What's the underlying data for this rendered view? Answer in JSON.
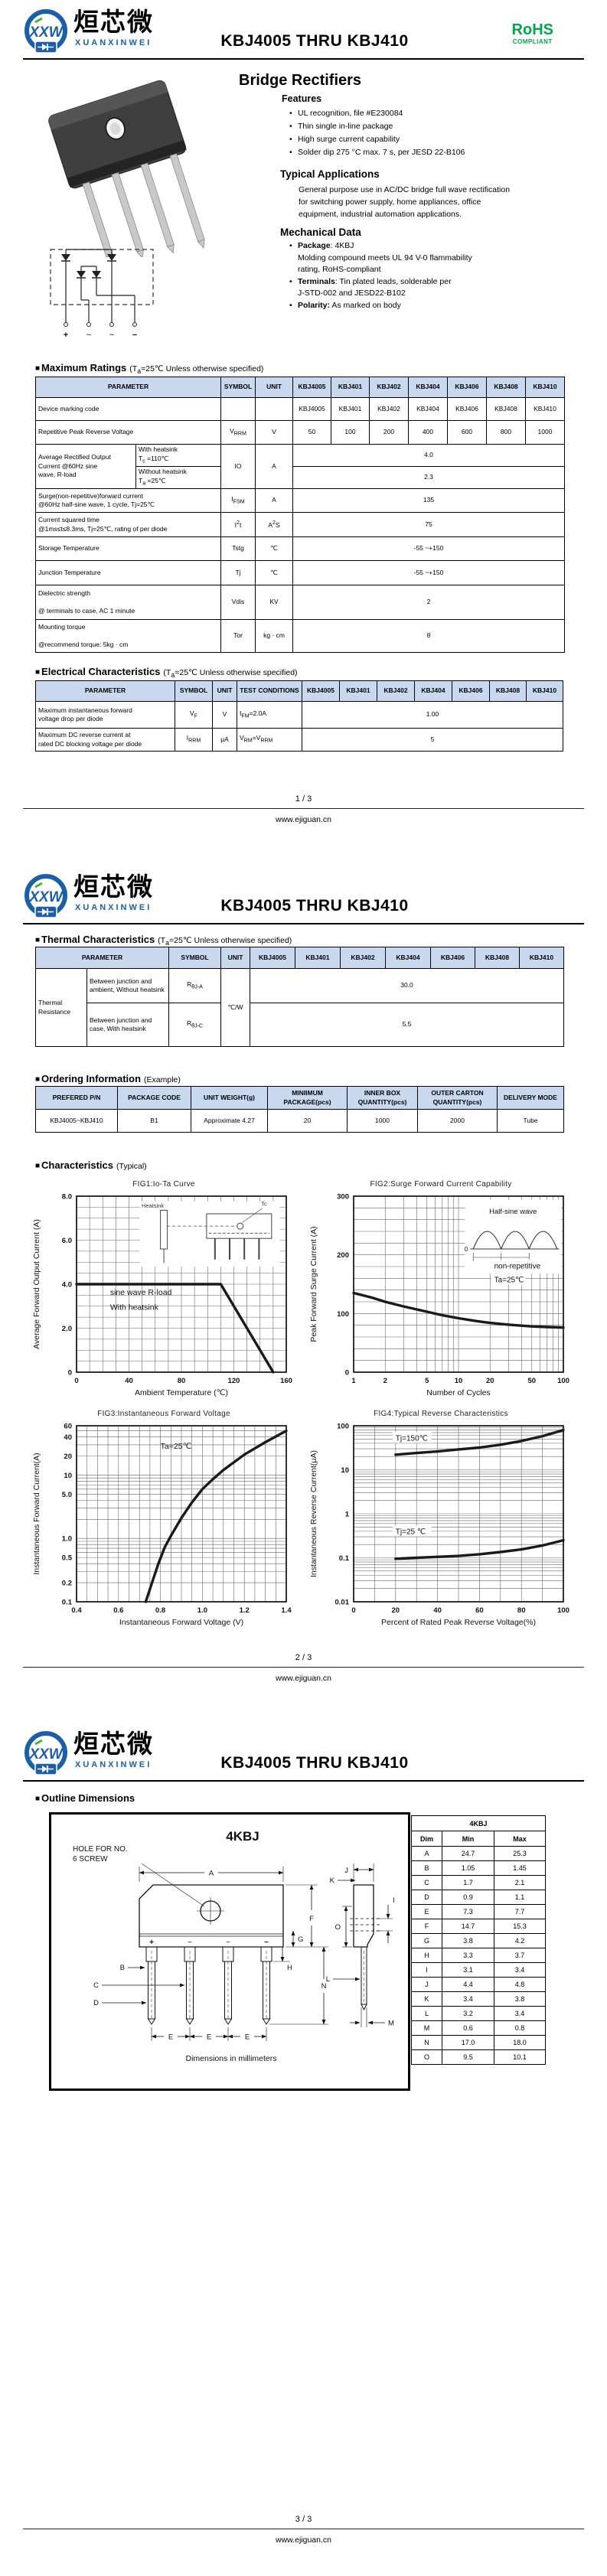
{
  "ui": {
    "bullet_square": "■",
    "bullet_dot": "•"
  },
  "brand": {
    "monogram": "XXW",
    "name_cn": "烜芯微",
    "name_en": "XUANXINWEI",
    "blue": "#1b5ea9",
    "green": "#46b035"
  },
  "header": {
    "title": "KBJ4005 THRU KBJ410",
    "rohs": "RoHS",
    "rohs_sub": "COMPLIANT"
  },
  "footer": {
    "site": "www.ejiguan.cn",
    "pages": [
      "1 / 3",
      "2 / 3",
      "3 / 3"
    ]
  },
  "page1": {
    "product_title": "Bridge Rectifiers",
    "features": {
      "title": "Features",
      "items": [
        "UL recognition, file #E230084",
        "Thin single in-line package",
        "High surge current capability",
        "Solder dip 275 °C max. 7 s, per JESD 22-B106"
      ]
    },
    "applications": {
      "title": "Typical  Applications",
      "lines": [
        "General purpose use in AC/DC bridge full wave rectification",
        "for switching power supply, home appliances, office",
        "equipment, industrial automation applications."
      ]
    },
    "mechanical": {
      "title": "Mechanical Data",
      "items": [
        {
          "bullet": "•",
          "html": "<b>Package</b>: 4KBJ"
        },
        {
          "bullet": "",
          "html": "Molding compound meets UL 94 V-0 flammability"
        },
        {
          "bullet": "",
          "html": "rating, RoHS-compliant"
        },
        {
          "bullet": "•",
          "html": "<b>Terminals</b>: Tin plated leads, solderable per"
        },
        {
          "bullet": "",
          "html": "J-STD-002 and JESD22-B102"
        },
        {
          "bullet": "•",
          "html": "<b>Polarity:</b> As marked on body"
        }
      ]
    },
    "schematic_terminals": [
      "+",
      "~",
      "~",
      "−"
    ]
  },
  "max_ratings": {
    "title": "Maximum Ratings",
    "condition_html": "(T<sub>a</sub>=25℃ Unless otherwise specified)",
    "headers": [
      "PARAMETER",
      "SYMBOL",
      "UNIT",
      "KBJ4005",
      "KBJ401",
      "KBJ402",
      "KBJ404",
      "KBJ406",
      "KBJ408",
      "KBJ410"
    ],
    "marking_row": {
      "param": "Device marking code",
      "values": [
        "KBJ4005",
        "KBJ401",
        "KBJ402",
        "KBJ404",
        "KBJ406",
        "KBJ408",
        "KBJ410"
      ]
    },
    "vrrm_row": {
      "param": "Repetitive Peak Reverse Voltage",
      "symbol_html": "V<sub>RRM</sub>",
      "unit": "V",
      "values": [
        "50",
        "100",
        "200",
        "400",
        "600",
        "800",
        "1000"
      ]
    },
    "io_row": {
      "param_html": "Average Rectified Output<br>Current @60Hz sine<br>wave, R-load",
      "sub1_html": "With heatsink<br>T<sub>c</sub> =110℃",
      "sub2_html": "Without heatsink<br>T<sub>a</sub> =25℃",
      "symbol": "IO",
      "unit": "A",
      "value1": "4.0",
      "value2": "2.3"
    },
    "ifsm_row": {
      "param_html": "Surge(non-repetitive)forward current<br>@60Hz half-sine wave, 1 cycle, Tj=25℃",
      "symbol_html": "I<sub>FSM</sub>",
      "unit": "A",
      "value": "135"
    },
    "i2t_row": {
      "param_html": "Current squared time<br>@1ms≤t≤8.3ms, Tj=25℃, rating of per diode",
      "symbol_html": "I<sup>2</sup>t",
      "unit_html": "A<sup>2</sup>S",
      "value": "75"
    },
    "tstg_row": {
      "param": "Storage Temperature",
      "symbol": "Tstg",
      "unit": "℃",
      "value": "-55 ~+150"
    },
    "tj_row": {
      "param": "Junction Temperature",
      "symbol": "Tj",
      "unit": "℃",
      "value": "-55 ~+150"
    },
    "vdis_row": {
      "param_html": "Dielectric strength<br><br>@ terminals to case, AC 1 minute",
      "symbol": "Vdis",
      "unit": "KV",
      "value": "2"
    },
    "tor_row": {
      "param_html": "Mounting torque<br><br>@recommend torque:  5kg · cm",
      "symbol": "Tor",
      "unit": "kg · cm",
      "value": "8"
    }
  },
  "electrical": {
    "title": "Electrical Characteristics",
    "condition_html": "(T<sub>a</sub>=25℃ Unless otherwise specified)",
    "headers": [
      "PARAMETER",
      "SYMBOL",
      "UNIT",
      "TEST CONDITIONS",
      "KBJ4005",
      "KBJ401",
      "KBJ402",
      "KBJ404",
      "KBJ406",
      "KBJ408",
      "KBJ410"
    ],
    "vf_row": {
      "param_html": "Maximum instantaneous forward<br>voltage drop per diode",
      "symbol_html": "V<sub>F</sub>",
      "unit": "V",
      "test_html": "I<sub>FM</sub>=2.0A",
      "value": "1.00"
    },
    "ir_row": {
      "param_html": "Maximum DC reverse current at<br>rated DC blocking voltage per diode",
      "symbol_html": "I<sub>RRM</sub>",
      "unit": "μA",
      "test_html": "V<sub>RM</sub>=V<sub>RRM</sub>",
      "value": "5"
    }
  },
  "thermal": {
    "title": "Thermal Characteristics",
    "condition_html": "(T<sub>a</sub>=25℃ Unless otherwise specified)",
    "headers": [
      "PARAMETER",
      "SYMBOL",
      "UNIT",
      "KBJ4005",
      "KBJ401",
      "KBJ402",
      "KBJ404",
      "KBJ406",
      "KBJ408",
      "KBJ410"
    ],
    "group_label": "Thermal Resistance",
    "unit": "℃/W",
    "row1": {
      "cond": "Between junction and ambient, Without heatsink",
      "symbol_html": "R<sub>θJ-A</sub>",
      "value": "30.0"
    },
    "row2": {
      "cond": "Between junction and case, With heatsink",
      "symbol_html": "R<sub>θJ-C</sub>",
      "value": "5.5"
    }
  },
  "ordering": {
    "title": "Ordering Information",
    "suffix": "(Example)",
    "headers": [
      "PREFERED P/N",
      "PACKAGE CODE",
      "UNIT WEIGHT(g)",
      "MINIIMUM PACKAGE(pcs)",
      "INNER BOX QUANTITY(pcs)",
      "OUTER CARTON QUANTITY(pcs)",
      "DELIVERY MODE"
    ],
    "row": [
      "KBJ4005~KBJ410",
      "B1",
      "Approximate 4.27",
      "20",
      "1000",
      "2000",
      "Tube"
    ]
  },
  "characteristics": {
    "title": "Characteristics",
    "suffix": "(Typical)"
  },
  "chart_data": [
    {
      "id": "fig1",
      "type": "line",
      "title": "FIG1:Io-Ta Curve",
      "xlabel": "Ambient Temperature (℃)",
      "ylabel": "Average Forward Output Current (A)",
      "xscale": "linear",
      "xlim": [
        0,
        160
      ],
      "xminor": 10,
      "yscale": "linear",
      "ylim": [
        0,
        8
      ],
      "yminor": 0.5,
      "xticks": [
        [
          0,
          "0"
        ],
        [
          40,
          "40"
        ],
        [
          80,
          "80"
        ],
        [
          120,
          "120"
        ],
        [
          160,
          "160"
        ]
      ],
      "yticks": [
        [
          0,
          "0"
        ],
        [
          2,
          "2.0"
        ],
        [
          4,
          "4.0"
        ],
        [
          6,
          "6.0"
        ],
        [
          8,
          "8.0"
        ]
      ],
      "series": [
        {
          "name": "Io limit",
          "points": [
            [
              0,
              4
            ],
            [
              110,
              4
            ],
            [
              150,
              0
            ]
          ]
        }
      ],
      "annotations": [
        {
          "fx": 0.16,
          "fy": 0.56,
          "text": "sine wave R-load",
          "size": 10.5
        },
        {
          "fx": 0.16,
          "fy": 0.645,
          "text": "With heatsink",
          "size": 10.5
        }
      ],
      "inset": "heatsink",
      "inset_labels": [
        "Heatsink",
        "Tc"
      ]
    },
    {
      "id": "fig2",
      "type": "line",
      "title": "FIG2:Surge Forward Current Capability",
      "xlabel": "Number of Cycles",
      "ylabel": "Peak Forward Surge Current (A)",
      "xscale": "log",
      "xlim": [
        1,
        100
      ],
      "yscale": "linear",
      "ylim": [
        0,
        300
      ],
      "yminor": 20,
      "xticks": [
        [
          1,
          "1"
        ],
        [
          2,
          "2"
        ],
        [
          5,
          "5"
        ],
        [
          10,
          "10"
        ],
        [
          20,
          "20"
        ],
        [
          50,
          "50"
        ],
        [
          100,
          "100"
        ]
      ],
      "yticks": [
        [
          0,
          "0"
        ],
        [
          100,
          "100"
        ],
        [
          200,
          "200"
        ],
        [
          300,
          "300"
        ]
      ],
      "series": [
        {
          "name": "IFSM",
          "points": [
            [
              1,
              135
            ],
            [
              1.5,
              127
            ],
            [
              2,
              120
            ],
            [
              3,
              112
            ],
            [
              5,
              103
            ],
            [
              7,
              97
            ],
            [
              10,
              92
            ],
            [
              15,
              87
            ],
            [
              20,
              84
            ],
            [
              30,
              81
            ],
            [
              50,
              78
            ],
            [
              70,
              77
            ],
            [
              100,
              76
            ]
          ]
        }
      ],
      "annotations": [
        {
          "fx": 0.67,
          "fy": 0.41,
          "text": "non-repetitive",
          "size": 10,
          "bg": true
        },
        {
          "fx": 0.67,
          "fy": 0.49,
          "text": "Ta=25℃",
          "size": 10,
          "bg": true
        }
      ],
      "inset": "halfsine",
      "inset_labels": [
        "Half-sine wave"
      ]
    },
    {
      "id": "fig3",
      "type": "line",
      "title": "FIG3:Instantaneous Forward Voltage",
      "xlabel": "Instantaneous Forward Voltage (V)",
      "ylabel": "Instantaneous Forward Current(A)",
      "xscale": "linear",
      "xlim": [
        0.4,
        1.4
      ],
      "xminor": 0.05,
      "yscale": "log",
      "ylim": [
        0.1,
        60
      ],
      "xticks": [
        [
          0.4,
          "0.4"
        ],
        [
          0.6,
          "0.6"
        ],
        [
          0.8,
          "0.8"
        ],
        [
          1.0,
          "1.0"
        ],
        [
          1.2,
          "1.2"
        ],
        [
          1.4,
          "1.4"
        ]
      ],
      "yticks": [
        [
          0.1,
          "0.1"
        ],
        [
          0.2,
          "0.2"
        ],
        [
          0.5,
          "0.5"
        ],
        [
          1,
          "1.0"
        ],
        [
          5,
          "5.0"
        ],
        [
          10,
          "10"
        ],
        [
          20,
          "20"
        ],
        [
          40,
          "40"
        ],
        [
          60,
          "60"
        ]
      ],
      "series": [
        {
          "name": "VF",
          "points": [
            [
              0.73,
              0.1
            ],
            [
              0.76,
              0.2
            ],
            [
              0.79,
              0.4
            ],
            [
              0.82,
              0.72
            ],
            [
              0.85,
              1.1
            ],
            [
              0.9,
              2.1
            ],
            [
              0.95,
              3.7
            ],
            [
              1.0,
              6.0
            ],
            [
              1.05,
              8.6
            ],
            [
              1.1,
              12
            ],
            [
              1.2,
              21
            ],
            [
              1.3,
              33
            ],
            [
              1.4,
              50
            ]
          ]
        }
      ],
      "annotations": [
        {
          "fx": 0.4,
          "fy": 0.13,
          "text": "Ta=25℃",
          "size": 10.5
        }
      ]
    },
    {
      "id": "fig4",
      "type": "line",
      "title": "FIG4:Typical Reverse Characteristics",
      "xlabel": "Percent of Rated Peak Reverse Voltage(%)",
      "ylabel": "Instantaneous Reverse Current(μA)",
      "xscale": "linear",
      "xlim": [
        0,
        100
      ],
      "xminor": 10,
      "yscale": "log",
      "ylim": [
        0.01,
        100
      ],
      "xticks": [
        [
          0,
          "0"
        ],
        [
          20,
          "20"
        ],
        [
          40,
          "40"
        ],
        [
          60,
          "60"
        ],
        [
          80,
          "80"
        ],
        [
          100,
          "100"
        ]
      ],
      "yticks": [
        [
          0.01,
          "0.01"
        ],
        [
          0.1,
          "0.1"
        ],
        [
          1,
          "1"
        ],
        [
          10,
          "10"
        ],
        [
          100,
          "100"
        ]
      ],
      "series": [
        {
          "name": "Tj=150℃",
          "points": [
            [
              20,
              22
            ],
            [
              30,
              24
            ],
            [
              40,
              26
            ],
            [
              50,
              29
            ],
            [
              60,
              32
            ],
            [
              70,
              37
            ],
            [
              80,
              45
            ],
            [
              90,
              58
            ],
            [
              100,
              80
            ]
          ]
        },
        {
          "name": "Tj=25℃",
          "points": [
            [
              20,
              0.095
            ],
            [
              30,
              0.1
            ],
            [
              40,
              0.105
            ],
            [
              50,
              0.11
            ],
            [
              60,
              0.12
            ],
            [
              70,
              0.135
            ],
            [
              80,
              0.155
            ],
            [
              90,
              0.19
            ],
            [
              100,
              0.25
            ]
          ]
        }
      ],
      "annotations": [
        {
          "fx": 0.2,
          "fy": 0.085,
          "text": "Tj=150℃",
          "size": 10,
          "bg": true
        },
        {
          "fx": 0.2,
          "fy": 0.615,
          "text": "Tj=25 ℃",
          "size": 10,
          "bg": true
        }
      ]
    }
  ],
  "outline": {
    "title": "Outline Dimensions",
    "drawing_title": "4KBJ",
    "hole_note_1": "HOLE FOR NO.",
    "hole_note_2": "6 SCREW",
    "note": "Dimensions in millimeters",
    "terminals": [
      "+",
      "~",
      "~",
      "−"
    ],
    "letters": [
      "A",
      "B",
      "C",
      "D",
      "E",
      "F",
      "G",
      "H",
      "I",
      "J",
      "K",
      "L",
      "M",
      "N",
      "O"
    ],
    "table": {
      "title": "4KBJ",
      "headers": [
        "Dim",
        "Min",
        "Max"
      ],
      "rows": [
        [
          "A",
          "24.7",
          "25.3"
        ],
        [
          "B",
          "1.05",
          "1.45"
        ],
        [
          "C",
          "1.7",
          "2.1"
        ],
        [
          "D",
          "0.9",
          "1.1"
        ],
        [
          "E",
          "7.3",
          "7.7"
        ],
        [
          "F",
          "14.7",
          "15.3"
        ],
        [
          "G",
          "3.8",
          "4.2"
        ],
        [
          "H",
          "3.3",
          "3.7"
        ],
        [
          "I",
          "3.1",
          "3.4"
        ],
        [
          "J",
          "4.4",
          "4.8"
        ],
        [
          "K",
          "3.4",
          "3.8"
        ],
        [
          "L",
          "3.2",
          "3.4"
        ],
        [
          "M",
          "0.6",
          "0.8"
        ],
        [
          "N",
          "17.0",
          "18.0"
        ],
        [
          "O",
          "9.5",
          "10.1"
        ]
      ]
    }
  }
}
